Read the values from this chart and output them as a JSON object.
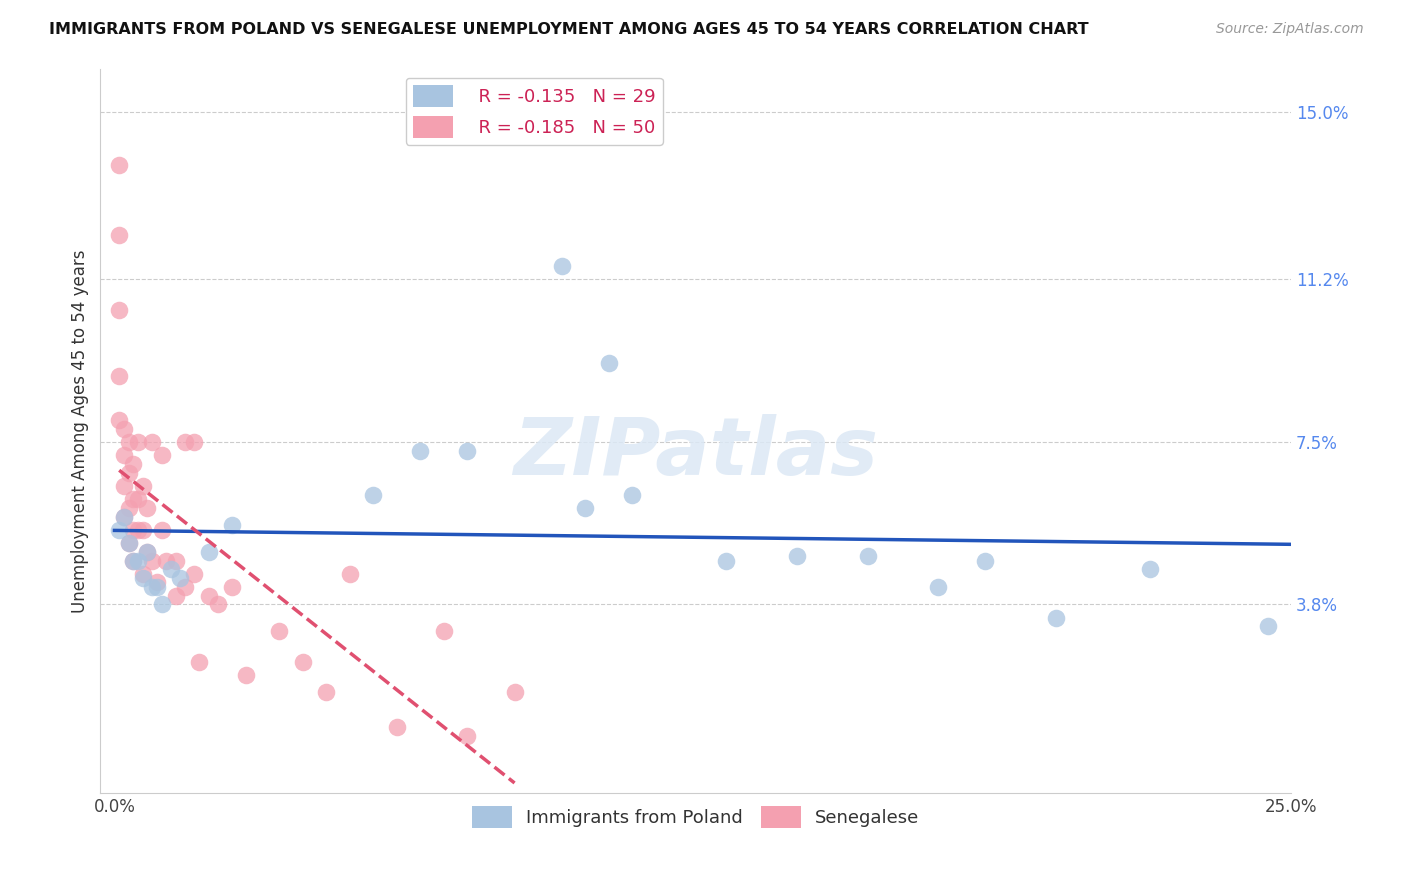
{
  "title": "IMMIGRANTS FROM POLAND VS SENEGALESE UNEMPLOYMENT AMONG AGES 45 TO 54 YEARS CORRELATION CHART",
  "source": "Source: ZipAtlas.com",
  "ylabel": "Unemployment Among Ages 45 to 54 years",
  "xlim": [
    0.0,
    0.25
  ],
  "ylim": [
    -0.005,
    0.16
  ],
  "right_yticks": [
    0.038,
    0.075,
    0.112,
    0.15
  ],
  "right_yticklabels": [
    "3.8%",
    "7.5%",
    "11.2%",
    "15.0%"
  ],
  "poland_R": -0.135,
  "poland_N": 29,
  "senegal_R": -0.185,
  "senegal_N": 50,
  "poland_color": "#a8c4e0",
  "senegal_color": "#f4a0b0",
  "poland_line_color": "#2255bb",
  "senegal_line_color": "#e05070",
  "watermark": "ZIPatlas",
  "poland_x": [
    0.001,
    0.002,
    0.003,
    0.004,
    0.005,
    0.006,
    0.007,
    0.008,
    0.009,
    0.01,
    0.012,
    0.014,
    0.02,
    0.025,
    0.055,
    0.065,
    0.075,
    0.095,
    0.1,
    0.105,
    0.11,
    0.13,
    0.145,
    0.16,
    0.175,
    0.185,
    0.2,
    0.22,
    0.245
  ],
  "poland_y": [
    0.055,
    0.058,
    0.052,
    0.048,
    0.048,
    0.044,
    0.05,
    0.042,
    0.042,
    0.038,
    0.046,
    0.044,
    0.05,
    0.056,
    0.063,
    0.073,
    0.073,
    0.115,
    0.06,
    0.093,
    0.063,
    0.048,
    0.049,
    0.049,
    0.042,
    0.048,
    0.035,
    0.046,
    0.033
  ],
  "senegal_x": [
    0.001,
    0.001,
    0.001,
    0.001,
    0.001,
    0.002,
    0.002,
    0.002,
    0.002,
    0.003,
    0.003,
    0.003,
    0.003,
    0.004,
    0.004,
    0.004,
    0.004,
    0.005,
    0.005,
    0.005,
    0.006,
    0.006,
    0.006,
    0.007,
    0.007,
    0.008,
    0.008,
    0.009,
    0.01,
    0.01,
    0.011,
    0.013,
    0.013,
    0.015,
    0.015,
    0.017,
    0.017,
    0.018,
    0.02,
    0.022,
    0.025,
    0.028,
    0.035,
    0.04,
    0.045,
    0.05,
    0.06,
    0.07,
    0.075,
    0.085
  ],
  "senegal_y": [
    0.138,
    0.122,
    0.105,
    0.09,
    0.08,
    0.078,
    0.072,
    0.065,
    0.058,
    0.075,
    0.068,
    0.06,
    0.052,
    0.07,
    0.062,
    0.055,
    0.048,
    0.075,
    0.062,
    0.055,
    0.065,
    0.055,
    0.045,
    0.06,
    0.05,
    0.075,
    0.048,
    0.043,
    0.072,
    0.055,
    0.048,
    0.048,
    0.04,
    0.075,
    0.042,
    0.075,
    0.045,
    0.025,
    0.04,
    0.038,
    0.042,
    0.022,
    0.032,
    0.025,
    0.018,
    0.045,
    0.01,
    0.032,
    0.008,
    0.018
  ]
}
